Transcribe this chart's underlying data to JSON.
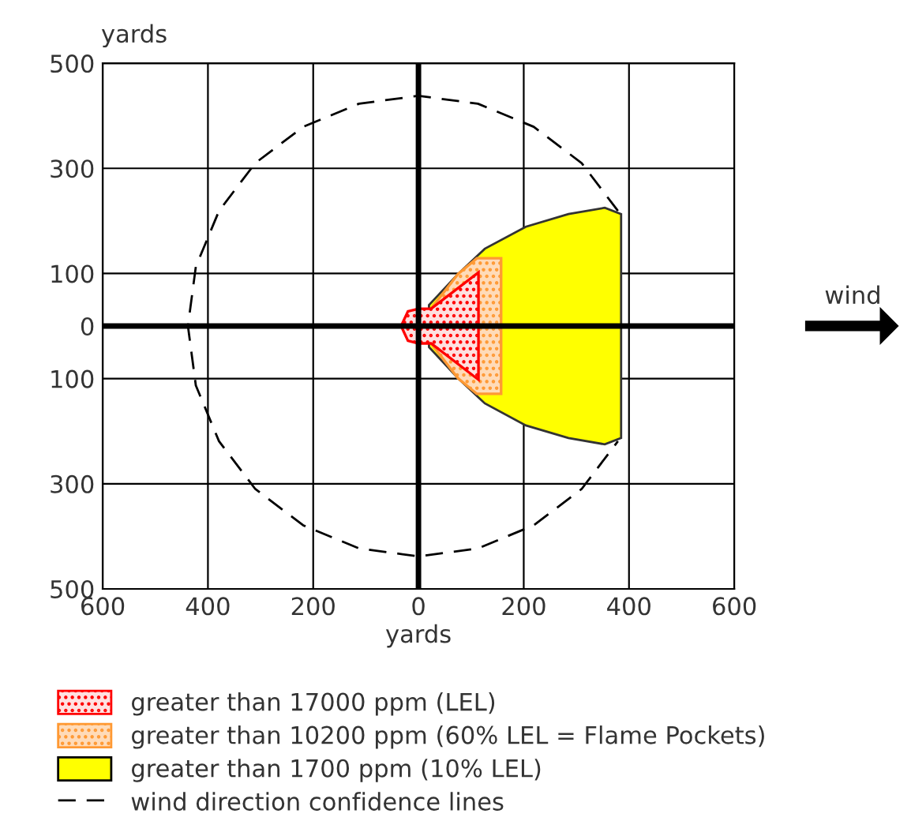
{
  "chart_data": {
    "type": "area",
    "xlabel": "yards",
    "ylabel": "yards",
    "xlim": [
      -600,
      600
    ],
    "ylim": [
      -500,
      500
    ],
    "xticks": [
      {
        "value": -600,
        "label": "600"
      },
      {
        "value": -400,
        "label": "400"
      },
      {
        "value": -200,
        "label": "200"
      },
      0,
      200,
      400,
      600
    ],
    "yticks": [
      {
        "value": -500,
        "label": "500"
      },
      {
        "value": -300,
        "label": "300"
      },
      {
        "value": -100,
        "label": "100"
      },
      0,
      100,
      300,
      500
    ],
    "grid": true,
    "legend": "bottom",
    "annotations": [
      "wind"
    ],
    "series": [
      {
        "name": "greater than 1700 ppm (10% LEL)",
        "color": "#ffff00",
        "x": [
          20,
          75,
          126,
          204,
          285,
          354,
          385,
          385,
          354,
          285,
          204,
          126,
          75,
          20
        ],
        "values": [
          40,
          99,
          147,
          189,
          213,
          225,
          213,
          -213,
          -225,
          -213,
          -189,
          -147,
          -99,
          -40
        ]
      },
      {
        "name": "greater than 10200 ppm (60% LEL = Flame Pockets)",
        "color": "#ff9933",
        "x": [
          24,
          75,
          111,
          157,
          157,
          111,
          75,
          24
        ],
        "values": [
          33,
          99,
          129,
          129,
          -129,
          -129,
          -99,
          -33
        ]
      },
      {
        "name": "greater than 17000 ppm (LEL)",
        "color": "#ff0000",
        "x": [
          -20,
          -33,
          -20,
          0,
          24,
          114,
          114,
          24,
          0,
          -20
        ],
        "values": [
          28,
          0,
          -28,
          -33,
          -33,
          -102,
          102,
          33,
          33,
          28
        ]
      },
      {
        "name": "wind direction confidence lines",
        "type": "line",
        "color": "#000000",
        "line_style": "dashed",
        "x": [
          379,
          310,
          219,
          113,
          0,
          -113,
          -219,
          -310,
          -379,
          -423,
          -438,
          -423,
          -379,
          -310,
          -219,
          -113,
          0,
          113,
          219,
          310,
          379
        ],
        "values": [
          219,
          310,
          379,
          423,
          438,
          423,
          379,
          310,
          219,
          113,
          0,
          -113,
          -219,
          -310,
          -379,
          -423,
          -438,
          -423,
          -379,
          -310,
          -219
        ]
      }
    ]
  }
}
